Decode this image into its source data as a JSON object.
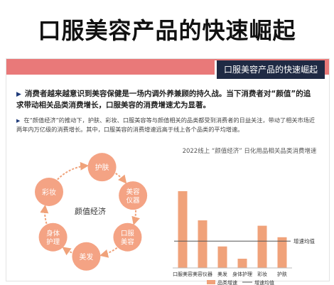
{
  "page_title": "口服美容产品的快速崛起",
  "slide_header": "口服美容产品的快速崛起",
  "point_main": "消费者越来越意识到美容保健是一场内调外养兼顾的持久战。当下消费者对“颜值”的追求带动相关品类消费增长，口服美容的消费增速尤为显著。",
  "point_sub": "在“颜值经济”的推动下，护肤、彩妆、口服美容等与颜值相关的品类都受到消费者的日益关注，带动了相关市场近两年内万亿级的消费增长。其中，口服美容的消费增速远高于线上各个品类的平均增速。",
  "cycle": {
    "center": "颜值经济",
    "nodes": [
      "护肤",
      "美容仪器",
      "口服美容",
      "美发",
      "身体护理",
      "彩妆"
    ]
  },
  "colors": {
    "accent": "#e97979",
    "header_bg": "#1f2a44",
    "bar": "#f0a27a",
    "cycle_node": "#f4a384"
  },
  "chart_data": {
    "type": "bar",
    "title": "2022线上 “颜值经济” 日化用品相关品类消费增速",
    "categories": [
      "口服美容",
      "美容仪器",
      "美发",
      "身体护理",
      "彩妆",
      "护肤"
    ],
    "values": [
      100,
      62,
      28,
      12,
      55,
      40
    ],
    "average_label": "增速均值",
    "average_value": 35,
    "legend": [
      "品类增速",
      "增速均值"
    ],
    "legend_position": "bottom"
  }
}
